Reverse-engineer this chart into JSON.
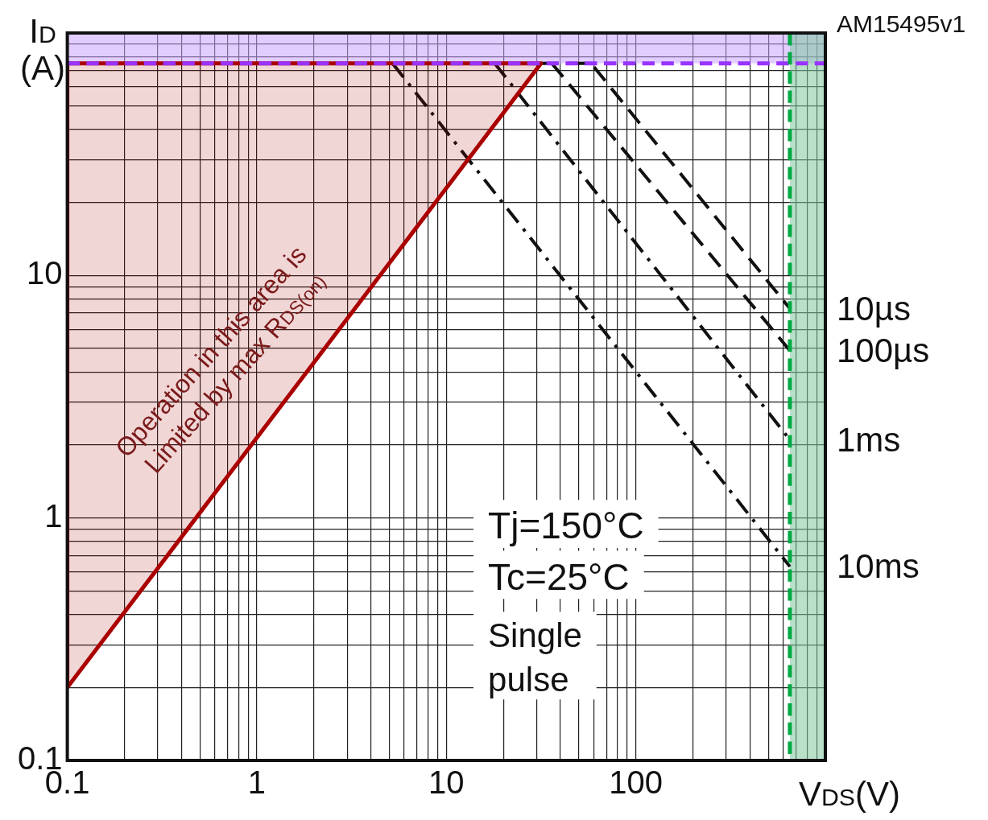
{
  "chart_data": {
    "type": "line",
    "xlabel": "V$_{DS}$(V)",
    "ylabel": "I$_{D}$\n(A)",
    "log": "xy",
    "xlim": [
      0.1,
      1000
    ],
    "ylim": [
      0.1,
      100
    ],
    "xticks": [
      0.1,
      1,
      10,
      100
    ],
    "yticks": [
      0.1,
      1,
      10
    ],
    "grid": true,
    "legend": false,
    "marker": "none",
    "series": [
      {
        "type": "area",
        "color": "#aa0000",
        "x": [
          0.1,
          0.1,
          31.6,
          0.1
        ],
        "values": [
          0.2,
          75,
          75,
          0.2
        ],
        "line_style": "solid"
      },
      {
        "name": "10µs",
        "color": "#111111",
        "x": [
          31.6,
          58,
          650
        ],
        "values": [
          75,
          75,
          7.3
        ],
        "line_style": "dashed"
      },
      {
        "name": "100µs",
        "color": "#111111",
        "x": [
          36,
          650
        ],
        "values": [
          75,
          4.9
        ],
        "line_style": "dashed"
      },
      {
        "name": "1ms",
        "color": "#111111",
        "x": [
          18,
          650
        ],
        "values": [
          75,
          2.1
        ],
        "line_style": "dashdot"
      },
      {
        "name": "10ms",
        "color": "#111111",
        "x": [
          5.2,
          650
        ],
        "values": [
          75,
          0.63
        ],
        "line_style": "dashdot"
      }
    ],
    "ref_lines": [
      {
        "axis": "y",
        "value": 75,
        "color": "#9933ff",
        "line_style": "dashed"
      },
      {
        "axis": "x",
        "value": 650,
        "color": "#00aa44",
        "line_style": "dashed"
      }
    ],
    "bands": [
      {
        "axis": "y",
        "from": 75,
        "to": 100,
        "color": "#c9a6ff"
      },
      {
        "axis": "x",
        "from": 650,
        "to": 1000,
        "color": "#7fc79c"
      }
    ],
    "annotations": [
      "AM15495v1",
      "Operation in this area is\nLimited by max R$_{DS(on)}$",
      "Tj=150°C",
      "Tc=25°C",
      "Single\npulse"
    ]
  }
}
